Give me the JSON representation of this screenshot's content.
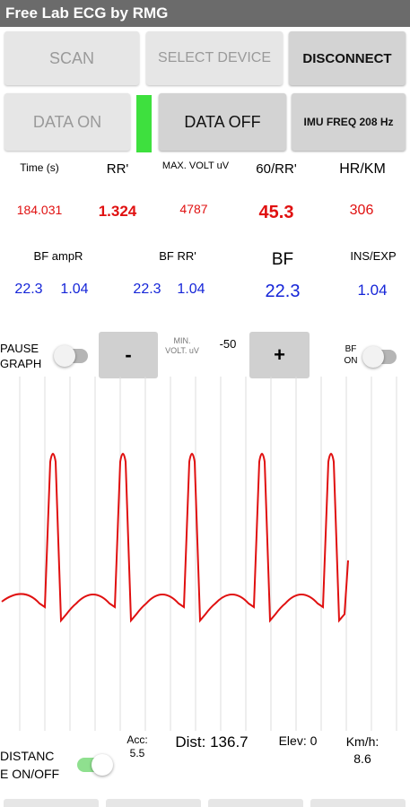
{
  "app": {
    "title": "Free Lab ECG by RMG"
  },
  "buttons": {
    "scan": "SCAN",
    "select_device": "SELECT DEVICE",
    "disconnect": "DISCONNECT",
    "data_on": "DATA ON",
    "data_off": "DATA OFF",
    "imu_freq": "IMU FREQ 208 Hz",
    "minus": "-",
    "plus": "+"
  },
  "status_indicator_color": "#3ee03e",
  "metrics_row1": {
    "time_label": "Time (s)",
    "time_value": "184.031",
    "rr_label": "RR'",
    "rr_value": "1.324",
    "maxvolt_label": "MAX. VOLT uV",
    "maxvolt_value": "4787",
    "sixty_rr_label": "60/RR'",
    "sixty_rr_value": "45.3",
    "hrkm_label": "HR/KM",
    "hrkm_value": "306"
  },
  "metrics_row2": {
    "bf_ampr_label": "BF ampR",
    "bf_ampr_value1": "22.3",
    "bf_ampr_value2": "1.04",
    "bf_rr_label": "BF RR'",
    "bf_rr_value1": "22.3",
    "bf_rr_value2": "1.04",
    "bf_label": "BF",
    "bf_value": "22.3",
    "insexp_label": "INS/EXP",
    "insexp_value": "1.04"
  },
  "controls": {
    "pause_graph_line1": "PAUSE",
    "pause_graph_line2": "GRAPH",
    "min_volt_line1": "MIN.",
    "min_volt_line2": "VOLT. uV",
    "min_volt_value": "-50",
    "bf_on_line1": "BF",
    "bf_on_line2": "ON",
    "pause_graph_on": false,
    "bf_on": false
  },
  "ecg": {
    "line_color": "#e01010",
    "grid_color": "#dcdcdc",
    "beats": 5
  },
  "footer": {
    "distance_line1": "DISTANC",
    "distance_line2": "E ON/OFF",
    "distance_on": true,
    "acc_label": "Acc:",
    "acc_value": "5.5",
    "dist_text": "Dist: 136.7",
    "elev_text": "Elev: 0",
    "kmh_label": "Km/h:",
    "kmh_value": "8.6"
  }
}
